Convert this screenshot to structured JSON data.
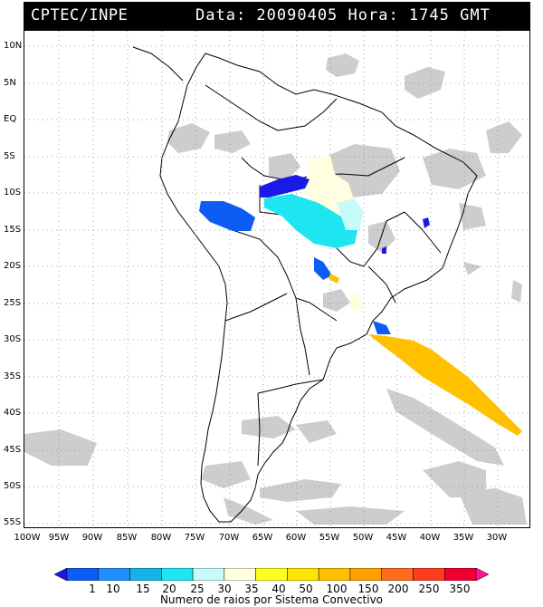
{
  "header": {
    "agency": "CPTEC/INPE",
    "datetime": "Data: 20090405 Hora: 1745 GMT"
  },
  "map": {
    "lat_labels": [
      "10N",
      "5N",
      "EQ",
      "5S",
      "10S",
      "15S",
      "20S",
      "25S",
      "30S",
      "35S",
      "40S",
      "45S",
      "50S",
      "55S"
    ],
    "lon_labels": [
      "100W",
      "95W",
      "90W",
      "85W",
      "80W",
      "75W",
      "70W",
      "65W",
      "60W",
      "55W",
      "50W",
      "45W",
      "40W",
      "35W",
      "30W"
    ],
    "gridlines": "dotted",
    "cloud_color": "#c8c8c8",
    "land_border_color": "#000000"
  },
  "legend": {
    "levels": [
      "1",
      "10",
      "15",
      "20",
      "25",
      "30",
      "35",
      "40",
      "50",
      "100",
      "150",
      "200",
      "250",
      "350"
    ],
    "colors": [
      "#1a1ae6",
      "#0d5df2",
      "#1e90ff",
      "#16b4e6",
      "#1ee6f0",
      "#c8fafa",
      "#ffffe0",
      "#ffff1e",
      "#ffe400",
      "#ffc000",
      "#ffa000",
      "#ff6c1e",
      "#ff3c1e",
      "#f00032",
      "#ff1493"
    ],
    "caption": "Numero de raios por Sistema Convectivo"
  }
}
